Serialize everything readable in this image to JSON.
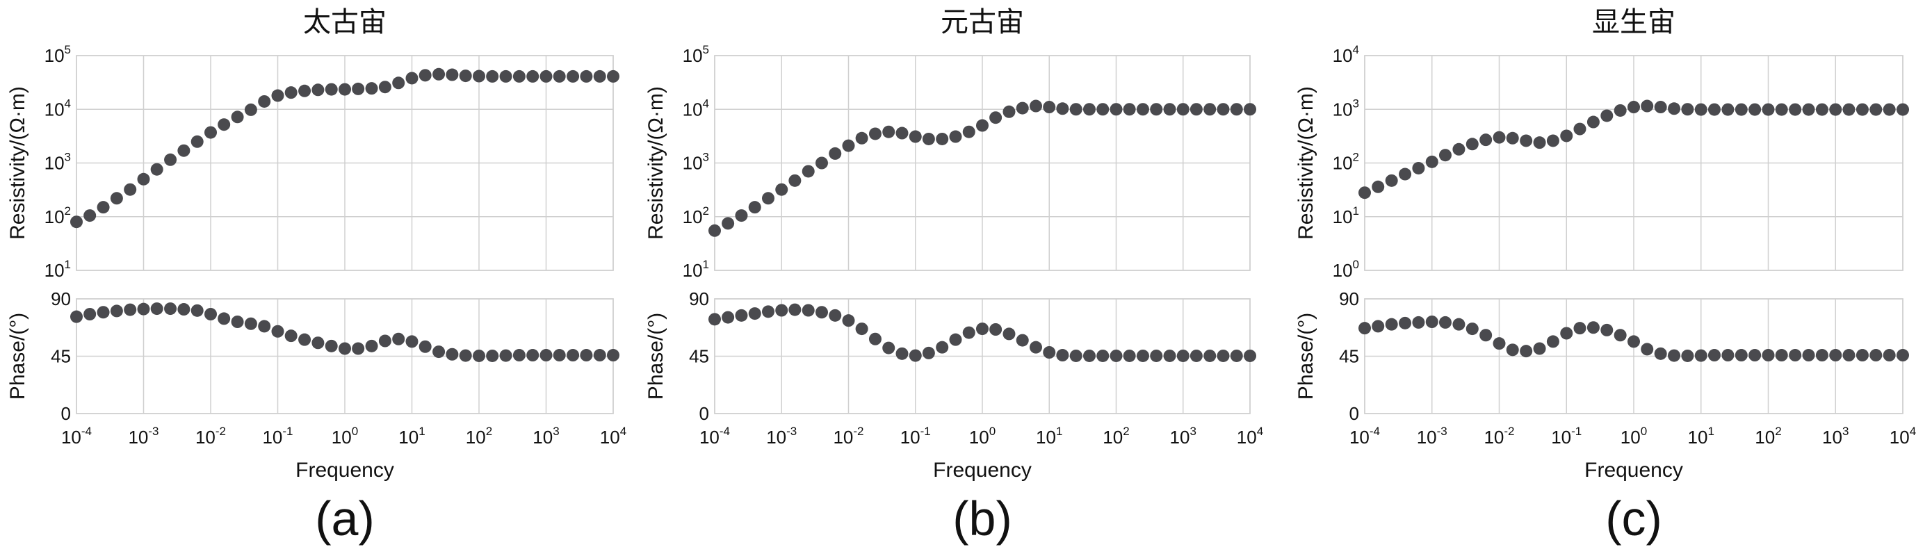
{
  "chart_data": [
    {
      "type": "scatter",
      "title": "太古宙",
      "panel_label": "(a)",
      "xlabel": "Frequency",
      "x_scale": "log",
      "xlim": [
        0.0001,
        10000
      ],
      "x_ticks": [
        "10-4",
        "10-3",
        "10-2",
        "10-1",
        "100",
        "101",
        "102",
        "103",
        "104"
      ],
      "grid": true,
      "series": [
        {
          "ylabel": "Resistivity/(Ω·m)",
          "y_scale": "log",
          "ylim": [
            10,
            100000
          ],
          "y_ticks": [
            "101",
            "102",
            "103",
            "104",
            "105"
          ],
          "x": [
            0.0001,
            0.000158,
            0.000251,
            0.000398,
            0.000631,
            0.001,
            0.00158,
            0.00251,
            0.00398,
            0.00631,
            0.01,
            0.0158,
            0.0251,
            0.0398,
            0.0631,
            0.1,
            0.158,
            0.251,
            0.398,
            0.631,
            1,
            1.58,
            2.51,
            3.98,
            6.31,
            10,
            15.8,
            25.1,
            39.8,
            63.1,
            100,
            158,
            251,
            398,
            631,
            1000,
            1580,
            2510,
            3980,
            6310,
            10000
          ],
          "y": [
            80,
            105,
            150,
            220,
            320,
            500,
            760,
            1150,
            1700,
            2500,
            3700,
            5200,
            7200,
            9800,
            14000,
            18000,
            20500,
            22000,
            23000,
            23500,
            23500,
            24000,
            24500,
            26000,
            31000,
            38000,
            43000,
            45000,
            44000,
            42000,
            41500,
            41000,
            41000,
            41000,
            41000,
            41000,
            41000,
            41000,
            41000,
            41000,
            41000
          ]
        },
        {
          "ylabel": "Phase/(°)",
          "y_scale": "linear",
          "ylim": [
            0,
            90
          ],
          "y_ticks": [
            "0",
            "45",
            "90"
          ],
          "x": [
            0.0001,
            0.000158,
            0.000251,
            0.000398,
            0.000631,
            0.001,
            0.00158,
            0.00251,
            0.00398,
            0.00631,
            0.01,
            0.0158,
            0.0251,
            0.0398,
            0.0631,
            0.1,
            0.158,
            0.251,
            0.398,
            0.631,
            1,
            1.58,
            2.51,
            3.98,
            6.31,
            10,
            15.8,
            25.1,
            39.8,
            63.1,
            100,
            158,
            251,
            398,
            631,
            1000,
            1580,
            2510,
            3980,
            6310,
            10000
          ],
          "y": [
            76,
            78,
            79.5,
            80.5,
            81.5,
            82,
            82.3,
            82.3,
            81.8,
            80.8,
            78,
            74.5,
            72,
            70.5,
            68.5,
            64.5,
            61,
            58,
            55.5,
            53,
            51,
            51,
            53,
            57,
            58.5,
            56.5,
            52.5,
            48.5,
            46.5,
            45.5,
            45.3,
            45.3,
            45.5,
            45.8,
            45.8,
            45.8,
            45.8,
            45.8,
            45.8,
            45.8,
            45.8
          ]
        }
      ]
    },
    {
      "type": "scatter",
      "title": "元古宙",
      "panel_label": "(b)",
      "xlabel": "Frequency",
      "x_scale": "log",
      "xlim": [
        0.0001,
        10000
      ],
      "x_ticks": [
        "10-4",
        "10-3",
        "10-2",
        "10-1",
        "100",
        "101",
        "102",
        "103",
        "104"
      ],
      "grid": true,
      "series": [
        {
          "ylabel": "Resistivity/(Ω·m)",
          "y_scale": "log",
          "ylim": [
            10,
            100000
          ],
          "y_ticks": [
            "101",
            "102",
            "103",
            "104",
            "105"
          ],
          "x": [
            0.0001,
            0.000158,
            0.000251,
            0.000398,
            0.000631,
            0.001,
            0.00158,
            0.00251,
            0.00398,
            0.00631,
            0.01,
            0.0158,
            0.0251,
            0.0398,
            0.0631,
            0.1,
            0.158,
            0.251,
            0.398,
            0.631,
            1,
            1.58,
            2.51,
            3.98,
            6.31,
            10,
            15.8,
            25.1,
            39.8,
            63.1,
            100,
            158,
            251,
            398,
            631,
            1000,
            1580,
            2510,
            3980,
            6310,
            10000
          ],
          "y": [
            55,
            75,
            105,
            150,
            220,
            320,
            470,
            700,
            1000,
            1500,
            2100,
            2900,
            3500,
            3800,
            3600,
            3100,
            2800,
            2800,
            3100,
            3800,
            5000,
            7000,
            9000,
            10500,
            11500,
            11000,
            10300,
            10000,
            10000,
            10000,
            10000,
            10000,
            10000,
            10000,
            10000,
            10000,
            10000,
            10000,
            10000,
            10000,
            10000
          ]
        },
        {
          "ylabel": "Phase/(°)",
          "y_scale": "linear",
          "ylim": [
            0,
            90
          ],
          "y_ticks": [
            "0",
            "45",
            "90"
          ],
          "x": [
            0.0001,
            0.000158,
            0.000251,
            0.000398,
            0.000631,
            0.001,
            0.00158,
            0.00251,
            0.00398,
            0.00631,
            0.01,
            0.0158,
            0.0251,
            0.0398,
            0.0631,
            0.1,
            0.158,
            0.251,
            0.398,
            0.631,
            1,
            1.58,
            2.51,
            3.98,
            6.31,
            10,
            15.8,
            25.1,
            39.8,
            63.1,
            100,
            158,
            251,
            398,
            631,
            1000,
            1580,
            2510,
            3980,
            6310,
            10000
          ],
          "y": [
            74,
            75.5,
            77,
            78.5,
            80,
            81,
            81.5,
            81,
            79.5,
            77,
            73,
            66.5,
            58.5,
            51.5,
            47,
            45.5,
            47.5,
            52,
            58,
            63.5,
            66.5,
            66,
            62.5,
            57.5,
            52,
            48,
            45.8,
            45.3,
            45.3,
            45.3,
            45.3,
            45.3,
            45.3,
            45.3,
            45.3,
            45.3,
            45.3,
            45.3,
            45.3,
            45.3,
            45.3
          ]
        }
      ]
    },
    {
      "type": "scatter",
      "title": "显生宙",
      "panel_label": "(c)",
      "xlabel": "Frequency",
      "x_scale": "log",
      "xlim": [
        0.0001,
        10000
      ],
      "x_ticks": [
        "10-4",
        "10-3",
        "10-2",
        "10-1",
        "100",
        "101",
        "102",
        "103",
        "104"
      ],
      "grid": true,
      "series": [
        {
          "ylabel": "Resistivity/(Ω·m)",
          "y_scale": "log",
          "ylim": [
            1,
            10000
          ],
          "y_ticks": [
            "100",
            "101",
            "102",
            "103",
            "104"
          ],
          "x": [
            0.0001,
            0.000158,
            0.000251,
            0.000398,
            0.000631,
            0.001,
            0.00158,
            0.00251,
            0.00398,
            0.00631,
            0.01,
            0.0158,
            0.0251,
            0.0398,
            0.0631,
            0.1,
            0.158,
            0.251,
            0.398,
            0.631,
            1,
            1.58,
            2.51,
            3.98,
            6.31,
            10,
            15.8,
            25.1,
            39.8,
            63.1,
            100,
            158,
            251,
            398,
            631,
            1000,
            1580,
            2510,
            3980,
            6310,
            10000
          ],
          "y": [
            28,
            36,
            47,
            62,
            80,
            105,
            140,
            180,
            225,
            270,
            300,
            290,
            260,
            240,
            260,
            320,
            430,
            580,
            760,
            950,
            1100,
            1150,
            1100,
            1030,
            1000,
            990,
            990,
            990,
            990,
            990,
            990,
            990,
            990,
            990,
            990,
            990,
            990,
            990,
            990,
            990,
            990
          ]
        },
        {
          "ylabel": "Phase/(°)",
          "y_scale": "linear",
          "ylim": [
            0,
            90
          ],
          "y_ticks": [
            "0",
            "45",
            "90"
          ],
          "x": [
            0.0001,
            0.000158,
            0.000251,
            0.000398,
            0.000631,
            0.001,
            0.00158,
            0.00251,
            0.00398,
            0.00631,
            0.01,
            0.0158,
            0.0251,
            0.0398,
            0.0631,
            0.1,
            0.158,
            0.251,
            0.398,
            0.631,
            1,
            1.58,
            2.51,
            3.98,
            6.31,
            10,
            15.8,
            25.1,
            39.8,
            63.1,
            100,
            158,
            251,
            398,
            631,
            1000,
            1580,
            2510,
            3980,
            6310,
            10000
          ],
          "y": [
            67,
            68.5,
            70,
            71,
            71.5,
            72,
            71.5,
            70,
            66.5,
            61.5,
            55,
            50,
            49,
            51,
            56.5,
            63,
            67,
            67.5,
            65.5,
            61.5,
            56.5,
            50.5,
            47,
            45.5,
            45.3,
            45.5,
            45.8,
            45.8,
            45.8,
            45.8,
            45.8,
            45.8,
            45.8,
            45.8,
            45.8,
            45.8,
            45.8,
            45.8,
            45.8,
            45.8,
            45.8
          ]
        }
      ]
    }
  ]
}
